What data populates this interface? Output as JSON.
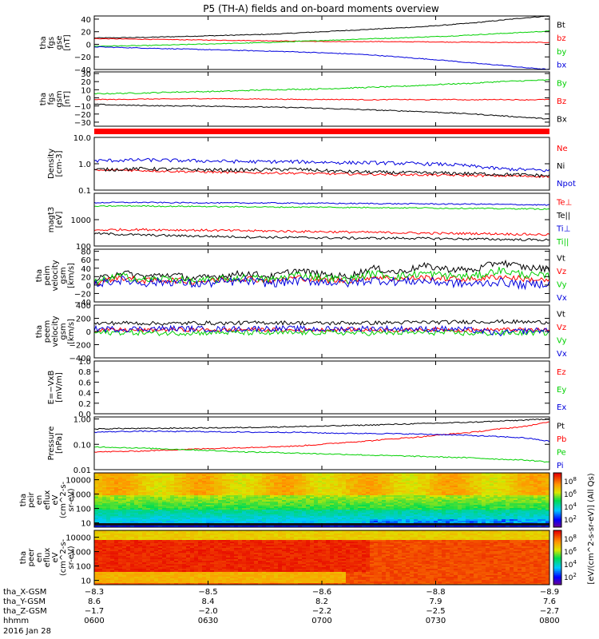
{
  "chart_data": {
    "type": "line",
    "title": "P5 (TH-A) fields and on-board moments overview",
    "time_ticks": [
      "0600",
      "0630",
      "0700",
      "0730",
      "0800"
    ],
    "panels": [
      {
        "id": "fgs-gse",
        "ylabel": [
          "tha",
          "fgs",
          "gse",
          "[nT]"
        ],
        "yticks": [
          "40",
          "20",
          "0",
          "−20",
          "−40"
        ],
        "ytick_values": [
          40,
          20,
          0,
          -20,
          -40
        ],
        "ylim": [
          -40,
          45
        ],
        "scale": "linear",
        "series": [
          {
            "name": "Bt",
            "color": "#000000",
            "noise": 0.6,
            "values": [
              10,
              10.5,
              11,
              12,
              13,
              14,
              15,
              16,
              18,
              20,
              22,
              24,
              26,
              28,
              31,
              34,
              38,
              42,
              45
            ]
          },
          {
            "name": "bz",
            "color": "#ff0000",
            "noise": 0.5,
            "values": [
              9,
              8.5,
              8,
              7.5,
              7,
              6.5,
              6,
              5.5,
              5,
              4.5,
              4,
              4.5,
              4,
              4,
              3.5,
              3.5,
              3,
              3,
              3
            ]
          },
          {
            "name": "by",
            "color": "#00d000",
            "noise": 0.6,
            "values": [
              -3,
              -2.5,
              -2,
              -1,
              0,
              1,
              2,
              3,
              4.5,
              6,
              7.5,
              9,
              10,
              11.5,
              13,
              15,
              17,
              19,
              21
            ]
          },
          {
            "name": "bx",
            "color": "#0000dd",
            "noise": 0.6,
            "values": [
              -4,
              -5,
              -6,
              -7,
              -8,
              -9,
              -10,
              -11,
              -12,
              -13.5,
              -15,
              -17,
              -20,
              -23,
              -26,
              -30,
              -33,
              -37,
              -40
            ]
          }
        ]
      },
      {
        "id": "fgs-gsm",
        "ylabel": [
          "tha",
          "fgs",
          "gsm",
          "[nT]"
        ],
        "yticks": [
          "30",
          "20",
          "10",
          "0",
          "−10",
          "−20",
          "−30"
        ],
        "ytick_values": [
          30,
          20,
          10,
          0,
          -10,
          -20,
          -30
        ],
        "ylim": [
          -35,
          32
        ],
        "scale": "linear",
        "series": [
          {
            "name": "By",
            "color": "#00d000",
            "noise": 0.7,
            "values": [
              5,
              5.5,
              6,
              7,
              7.5,
              8,
              9,
              10,
              10.5,
              11,
              12,
              13,
              14,
              15.5,
              17,
              18,
              20,
              21,
              22
            ]
          },
          {
            "name": "Bz",
            "color": "#ff0000",
            "noise": 0.5,
            "values": [
              -2,
              -2,
              -1.5,
              -1.5,
              -1,
              -1,
              -1.5,
              -1.5,
              -2,
              -2,
              -2,
              -2.5,
              -2,
              -2.5,
              -2,
              -2.5,
              -2,
              -2.5,
              -2
            ]
          },
          {
            "name": "Bx",
            "color": "#000000",
            "noise": 0.6,
            "values": [
              -8,
              -9,
              -9.5,
              -10,
              -10,
              -10.5,
              -11,
              -11.5,
              -12,
              -13,
              -14,
              -15,
              -16,
              -17,
              -18.5,
              -20,
              -22,
              -24,
              -26
            ]
          }
        ]
      },
      {
        "id": "density",
        "ylabel": [
          "Density",
          "[cm-3]"
        ],
        "yticks": [
          "10.0",
          "1.0",
          "0.1"
        ],
        "ytick_values": [
          10,
          1,
          0.1
        ],
        "ylim": [
          0.1,
          10
        ],
        "scale": "log",
        "series": [
          {
            "name": "Ne",
            "color": "#ff0000",
            "noise": 0.02,
            "values": [
              0.55,
              0.58,
              0.55,
              0.52,
              0.5,
              0.48,
              0.46,
              0.45,
              0.44,
              0.42,
              0.41,
              0.4,
              0.39,
              0.38,
              0.37,
              0.36,
              0.35,
              0.34,
              0.33
            ]
          },
          {
            "name": "Ni",
            "color": "#000000",
            "noise": 0.03,
            "values": [
              0.6,
              0.62,
              0.65,
              0.62,
              0.6,
              0.58,
              0.58,
              0.6,
              0.62,
              0.55,
              0.5,
              0.48,
              0.46,
              0.45,
              0.44,
              0.42,
              0.4,
              0.38,
              0.35
            ]
          },
          {
            "name": "Npot",
            "color": "#0000dd",
            "noise": 0.03,
            "values": [
              1.3,
              1.35,
              1.4,
              1.35,
              1.3,
              1.25,
              1.2,
              1.2,
              1.2,
              1.15,
              1.1,
              1.1,
              1.05,
              1.0,
              0.95,
              0.8,
              0.65,
              0.6,
              0.55
            ]
          }
        ]
      },
      {
        "id": "magt3",
        "ylabel": [
          "magt3",
          "[eV]"
        ],
        "yticks": [
          "1000",
          "100"
        ],
        "ytick_values": [
          1000,
          100
        ],
        "ylim": [
          100,
          10000
        ],
        "scale": "log",
        "series": [
          {
            "name": "Te⊥",
            "color": "#ff0000",
            "noise": 0.02,
            "values": [
              400,
              420,
              420,
              410,
              400,
              390,
              380,
              370,
              360,
              350,
              340,
              330,
              320,
              310,
              300,
              300,
              290,
              280,
              270
            ]
          },
          {
            "name": "Te||",
            "color": "#000000",
            "noise": 0.02,
            "values": [
              300,
              280,
              260,
              250,
              240,
              230,
              220,
              215,
              210,
              205,
              200,
              200,
              200,
              195,
              190,
              185,
              180,
              175,
              170
            ]
          },
          {
            "name": "Ti⊥",
            "color": "#0000dd",
            "noise": 0.01,
            "values": [
              4400,
              4500,
              4500,
              4400,
              4400,
              4300,
              4300,
              4300,
              4200,
              4200,
              4100,
              4100,
              4000,
              4000,
              3900,
              3900,
              3800,
              3700,
              3600
            ]
          },
          {
            "name": "Ti||",
            "color": "#00d000",
            "noise": 0.01,
            "values": [
              3200,
              3300,
              3300,
              3200,
              3200,
              3100,
              3100,
              3000,
              3000,
              3000,
              2900,
              2900,
              2800,
              2800,
              2700,
              2700,
              2600,
              2600,
              2500
            ]
          }
        ]
      },
      {
        "id": "peim-velocity",
        "ylabel": [
          "tha",
          "peim",
          "velocity",
          "gsm",
          "[km/s]"
        ],
        "yticks": [
          "80",
          "60",
          "40",
          "20",
          "0",
          "−20",
          "−40"
        ],
        "ytick_values": [
          80,
          60,
          40,
          20,
          0,
          -20,
          -40
        ],
        "ylim": [
          -40,
          85
        ],
        "scale": "linear",
        "series": [
          {
            "name": "Vt",
            "color": "#000000",
            "noise": 8,
            "values": [
              10,
              30,
              20,
              25,
              15,
              22,
              28,
              20,
              35,
              25,
              20,
              40,
              30,
              45,
              38,
              35,
              55,
              42,
              38
            ]
          },
          {
            "name": "Vz",
            "color": "#ff0000",
            "noise": 7,
            "values": [
              5,
              18,
              10,
              12,
              8,
              12,
              16,
              10,
              18,
              12,
              10,
              20,
              15,
              18,
              15,
              14,
              20,
              15,
              10
            ]
          },
          {
            "name": "Vy",
            "color": "#00d000",
            "noise": 9,
            "values": [
              5,
              22,
              12,
              16,
              8,
              14,
              18,
              12,
              25,
              18,
              12,
              28,
              20,
              28,
              22,
              20,
              35,
              25,
              20
            ]
          },
          {
            "name": "Vx",
            "color": "#0000dd",
            "noise": 10,
            "values": [
              2,
              12,
              5,
              8,
              2,
              6,
              10,
              4,
              10,
              8,
              4,
              12,
              8,
              10,
              5,
              2,
              8,
              0,
              5
            ]
          }
        ]
      },
      {
        "id": "peem-velocity",
        "ylabel": [
          "tha",
          "peem",
          "velocity",
          "gsm",
          "[km/s]"
        ],
        "yticks": [
          "400",
          "200",
          "0",
          "−200",
          "−400"
        ],
        "ytick_values": [
          400,
          200,
          0,
          -200,
          -400
        ],
        "ylim": [
          -400,
          400
        ],
        "scale": "linear",
        "series": [
          {
            "name": "Vt",
            "color": "#000000",
            "noise": 30,
            "values": [
              120,
              130,
              125,
              120,
              130,
              125,
              130,
              135,
              130,
              125,
              130,
              130,
              135,
              140,
              140,
              150,
              150,
              145,
              140
            ]
          },
          {
            "name": "Vz",
            "color": "#ff0000",
            "noise": 30,
            "values": [
              20,
              25,
              20,
              30,
              25,
              20,
              30,
              25,
              20,
              25,
              30,
              25,
              20,
              30,
              25,
              20,
              30,
              25,
              20
            ]
          },
          {
            "name": "Vy",
            "color": "#00d000",
            "noise": 40,
            "values": [
              -20,
              -15,
              -20,
              -25,
              -20,
              -15,
              -20,
              -25,
              -20,
              -15,
              -20,
              -25,
              -20,
              -15,
              -20,
              -30,
              -25,
              -20,
              -20
            ]
          },
          {
            "name": "Vx",
            "color": "#0000dd",
            "noise": 45,
            "values": [
              40,
              35,
              40,
              45,
              40,
              35,
              40,
              45,
              40,
              35,
              40,
              45,
              40,
              35,
              40,
              20,
              -30,
              10,
              20
            ]
          }
        ]
      },
      {
        "id": "efield",
        "ylabel": [
          "E=−VxB",
          "[mV/m]"
        ],
        "yticks": [
          "1.0",
          "0.8",
          "0.6",
          "0.4",
          "0.2",
          "0.0"
        ],
        "ytick_values": [
          1,
          0.8,
          0.6,
          0.4,
          0.2,
          0
        ],
        "ylim": [
          0,
          1
        ],
        "scale": "linear",
        "series": [
          {
            "name": "Ez",
            "color": "#ff0000",
            "values": []
          },
          {
            "name": "Ey",
            "color": "#00d000",
            "values": []
          },
          {
            "name": "Ex",
            "color": "#0000dd",
            "values": []
          }
        ]
      },
      {
        "id": "pressure",
        "ylabel": [
          "Pressure",
          "[nPa]"
        ],
        "yticks": [
          "1.00",
          "0.10",
          "0.01"
        ],
        "ytick_values": [
          1,
          0.1,
          0.01
        ],
        "ylim": [
          0.01,
          1.2
        ],
        "scale": "log",
        "series": [
          {
            "name": "Pt",
            "color": "#000000",
            "noise": 0.01,
            "values": [
              0.4,
              0.42,
              0.42,
              0.43,
              0.44,
              0.45,
              0.46,
              0.48,
              0.5,
              0.52,
              0.55,
              0.58,
              0.62,
              0.66,
              0.7,
              0.75,
              0.82,
              0.9,
              1.0
            ]
          },
          {
            "name": "Pb",
            "color": "#ff0000",
            "noise": 0.01,
            "values": [
              0.05,
              0.052,
              0.055,
              0.06,
              0.065,
              0.07,
              0.075,
              0.08,
              0.085,
              0.1,
              0.12,
              0.14,
              0.17,
              0.2,
              0.25,
              0.3,
              0.4,
              0.5,
              0.75
            ]
          },
          {
            "name": "Pe",
            "color": "#00d000",
            "noise": 0.01,
            "values": [
              0.08,
              0.075,
              0.07,
              0.065,
              0.06,
              0.055,
              0.05,
              0.048,
              0.045,
              0.042,
              0.04,
              0.037,
              0.035,
              0.033,
              0.031,
              0.029,
              0.026,
              0.024,
              0.02
            ]
          },
          {
            "name": "Pi",
            "color": "#0000dd",
            "noise": 0.01,
            "values": [
              0.3,
              0.32,
              0.33,
              0.32,
              0.32,
              0.31,
              0.3,
              0.3,
              0.3,
              0.28,
              0.27,
              0.27,
              0.26,
              0.25,
              0.24,
              0.22,
              0.2,
              0.18,
              0.13
            ]
          }
        ]
      }
    ],
    "spectrograms": [
      {
        "id": "peir-en-eflux",
        "ylabel": [
          "tha",
          "peir",
          "en",
          "eflux",
          "eV",
          "(cm^2-s-",
          "sr-eV)"
        ],
        "yticks": [
          "10000",
          "1000",
          "100",
          "10"
        ],
        "ytick_values": [
          10000,
          1000,
          100,
          10
        ],
        "ylim": [
          5,
          30000
        ],
        "scale": "log",
        "colorbar_ticks": [
          "10^8",
          "10^6",
          "10^4",
          "10^2"
        ]
      },
      {
        "id": "peer-en-eflux",
        "ylabel": [
          "tha",
          "peer",
          "en",
          "eflux",
          "eV",
          "(cm^2-s-",
          "sr-eV)"
        ],
        "yticks": [
          "10000",
          "1000",
          "100",
          "10"
        ],
        "ytick_values": [
          10000,
          1000,
          100,
          10
        ],
        "ylim": [
          5,
          30000
        ],
        "scale": "log",
        "colorbar_ticks": [
          "10^8",
          "10^6",
          "10^4",
          "10^2"
        ]
      }
    ],
    "colorbar_label": "[eV/(cm^2-s-sr-eV)] (All Qs)",
    "footer": {
      "row_labels": [
        "tha_X-GSM",
        "tha_Y-GSM",
        "tha_Z-GSM",
        "hhmm",
        "2016 Jan 28"
      ],
      "columns": [
        [
          "−8.3",
          "8.6",
          "−1.7",
          "0600"
        ],
        [
          "−8.5",
          "8.4",
          "−2.0",
          "0630"
        ],
        [
          "−8.6",
          "8.2",
          "−2.2",
          "0700"
        ],
        [
          "−8.8",
          "7.9",
          "−2.5",
          "0730"
        ],
        [
          "−8.9",
          "7.6",
          "−2.7",
          "0800"
        ]
      ]
    }
  }
}
